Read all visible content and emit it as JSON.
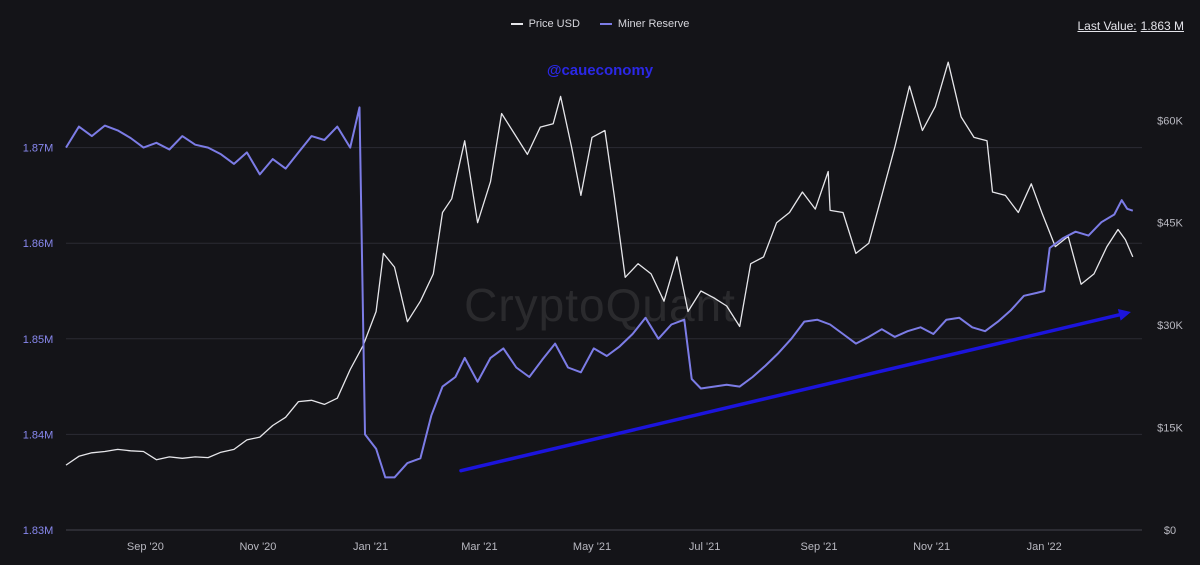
{
  "legend": {
    "price_label": "Price USD",
    "reserve_label": "Miner Reserve",
    "price_color": "#e6e6ea",
    "reserve_color": "#7c7ce6"
  },
  "last_value": {
    "label": "Last Value:",
    "value": "1.863 M"
  },
  "handle": "@caueconomy",
  "watermark": "CryptoQuant",
  "chart_data": {
    "type": "line",
    "title": "",
    "x_axis": {
      "ticks": [
        "Sep '20",
        "Nov '20",
        "Jan '21",
        "Mar '21",
        "May '21",
        "Jul '21",
        "Sep '21",
        "Nov '21",
        "Jan '22"
      ]
    },
    "y_left": {
      "label": "",
      "ylim": [
        1.83,
        1.88
      ],
      "ticks": [
        "1.83M",
        "1.84M",
        "1.85M",
        "1.86M",
        "1.87M"
      ]
    },
    "y_right": {
      "label": "",
      "ylim": [
        0,
        70000
      ],
      "ticks": [
        "$0",
        "$15K",
        "$30K",
        "$45K",
        "$60K"
      ]
    },
    "grid": "horizontal",
    "legend_position": "top-center",
    "series": [
      {
        "name": "Price USD",
        "axis": "right",
        "color": "#e6e6ea",
        "points": [
          [
            "2020-07-20",
            9500
          ],
          [
            "2020-07-27",
            10800
          ],
          [
            "2020-08-03",
            11300
          ],
          [
            "2020-08-10",
            11500
          ],
          [
            "2020-08-17",
            11800
          ],
          [
            "2020-08-24",
            11600
          ],
          [
            "2020-08-31",
            11500
          ],
          [
            "2020-09-07",
            10300
          ],
          [
            "2020-09-14",
            10700
          ],
          [
            "2020-09-21",
            10500
          ],
          [
            "2020-09-28",
            10700
          ],
          [
            "2020-10-05",
            10600
          ],
          [
            "2020-10-12",
            11400
          ],
          [
            "2020-10-19",
            11800
          ],
          [
            "2020-10-26",
            13200
          ],
          [
            "2020-11-02",
            13600
          ],
          [
            "2020-11-09",
            15300
          ],
          [
            "2020-11-16",
            16500
          ],
          [
            "2020-11-23",
            18800
          ],
          [
            "2020-11-30",
            19000
          ],
          [
            "2020-12-07",
            18400
          ],
          [
            "2020-12-14",
            19300
          ],
          [
            "2020-12-21",
            23500
          ],
          [
            "2020-12-28",
            27000
          ],
          [
            "2021-01-04",
            32000
          ],
          [
            "2021-01-08",
            40500
          ],
          [
            "2021-01-14",
            38500
          ],
          [
            "2021-01-21",
            30500
          ],
          [
            "2021-01-28",
            33500
          ],
          [
            "2021-02-04",
            37500
          ],
          [
            "2021-02-09",
            46500
          ],
          [
            "2021-02-14",
            48500
          ],
          [
            "2021-02-21",
            57000
          ],
          [
            "2021-02-28",
            45000
          ],
          [
            "2021-03-07",
            51000
          ],
          [
            "2021-03-13",
            61000
          ],
          [
            "2021-03-20",
            58000
          ],
          [
            "2021-03-27",
            55000
          ],
          [
            "2021-04-03",
            59000
          ],
          [
            "2021-04-10",
            59500
          ],
          [
            "2021-04-14",
            63500
          ],
          [
            "2021-04-20",
            56000
          ],
          [
            "2021-04-25",
            49000
          ],
          [
            "2021-05-01",
            57500
          ],
          [
            "2021-05-08",
            58500
          ],
          [
            "2021-05-13",
            49000
          ],
          [
            "2021-05-19",
            37000
          ],
          [
            "2021-05-26",
            39000
          ],
          [
            "2021-06-02",
            37500
          ],
          [
            "2021-06-09",
            33500
          ],
          [
            "2021-06-16",
            40000
          ],
          [
            "2021-06-22",
            32000
          ],
          [
            "2021-06-29",
            35000
          ],
          [
            "2021-07-06",
            34000
          ],
          [
            "2021-07-13",
            32800
          ],
          [
            "2021-07-20",
            29800
          ],
          [
            "2021-07-26",
            39000
          ],
          [
            "2021-08-02",
            40000
          ],
          [
            "2021-08-09",
            45000
          ],
          [
            "2021-08-16",
            46500
          ],
          [
            "2021-08-23",
            49500
          ],
          [
            "2021-08-30",
            47000
          ],
          [
            "2021-09-06",
            52500
          ],
          [
            "2021-09-07",
            46800
          ],
          [
            "2021-09-14",
            46500
          ],
          [
            "2021-09-21",
            40500
          ],
          [
            "2021-09-28",
            42000
          ],
          [
            "2021-10-05",
            49000
          ],
          [
            "2021-10-12",
            56000
          ],
          [
            "2021-10-20",
            65000
          ],
          [
            "2021-10-27",
            58500
          ],
          [
            "2021-11-03",
            62000
          ],
          [
            "2021-11-10",
            68500
          ],
          [
            "2021-11-17",
            60500
          ],
          [
            "2021-11-24",
            57500
          ],
          [
            "2021-12-01",
            57000
          ],
          [
            "2021-12-04",
            49500
          ],
          [
            "2021-12-11",
            49000
          ],
          [
            "2021-12-18",
            46500
          ],
          [
            "2021-12-25",
            50700
          ],
          [
            "2021-12-31",
            46300
          ],
          [
            "2022-01-07",
            41500
          ],
          [
            "2022-01-14",
            43000
          ],
          [
            "2022-01-21",
            36000
          ],
          [
            "2022-01-28",
            37500
          ],
          [
            "2022-02-04",
            41500
          ],
          [
            "2022-02-10",
            44000
          ],
          [
            "2022-02-14",
            42500
          ],
          [
            "2022-02-18",
            40000
          ]
        ]
      },
      {
        "name": "Miner Reserve",
        "axis": "left",
        "color": "#7c7ce6",
        "points": [
          [
            "2020-07-20",
            1.87
          ],
          [
            "2020-07-27",
            1.8722
          ],
          [
            "2020-08-03",
            1.8712
          ],
          [
            "2020-08-10",
            1.8723
          ],
          [
            "2020-08-17",
            1.8718
          ],
          [
            "2020-08-24",
            1.871
          ],
          [
            "2020-08-31",
            1.87
          ],
          [
            "2020-09-07",
            1.8705
          ],
          [
            "2020-09-14",
            1.8698
          ],
          [
            "2020-09-21",
            1.8712
          ],
          [
            "2020-09-28",
            1.8703
          ],
          [
            "2020-10-05",
            1.87
          ],
          [
            "2020-10-12",
            1.8693
          ],
          [
            "2020-10-19",
            1.8683
          ],
          [
            "2020-10-26",
            1.8695
          ],
          [
            "2020-11-02",
            1.8672
          ],
          [
            "2020-11-09",
            1.8688
          ],
          [
            "2020-11-16",
            1.8678
          ],
          [
            "2020-11-23",
            1.8695
          ],
          [
            "2020-11-30",
            1.8712
          ],
          [
            "2020-12-07",
            1.8708
          ],
          [
            "2020-12-14",
            1.8722
          ],
          [
            "2020-12-21",
            1.87
          ],
          [
            "2020-12-26",
            1.8742
          ],
          [
            "2020-12-29",
            1.84
          ],
          [
            "2021-01-04",
            1.8385
          ],
          [
            "2021-01-09",
            1.8355
          ],
          [
            "2021-01-14",
            1.8355
          ],
          [
            "2021-01-21",
            1.837
          ],
          [
            "2021-01-28",
            1.8375
          ],
          [
            "2021-02-03",
            1.842
          ],
          [
            "2021-02-09",
            1.845
          ],
          [
            "2021-02-16",
            1.846
          ],
          [
            "2021-02-21",
            1.848
          ],
          [
            "2021-02-28",
            1.8455
          ],
          [
            "2021-03-07",
            1.848
          ],
          [
            "2021-03-14",
            1.849
          ],
          [
            "2021-03-21",
            1.847
          ],
          [
            "2021-03-28",
            1.846
          ],
          [
            "2021-04-04",
            1.8478
          ],
          [
            "2021-04-11",
            1.8495
          ],
          [
            "2021-04-18",
            1.847
          ],
          [
            "2021-04-25",
            1.8465
          ],
          [
            "2021-05-02",
            1.849
          ],
          [
            "2021-05-09",
            1.8482
          ],
          [
            "2021-05-16",
            1.8492
          ],
          [
            "2021-05-23",
            1.8505
          ],
          [
            "2021-05-30",
            1.8522
          ],
          [
            "2021-06-06",
            1.85
          ],
          [
            "2021-06-13",
            1.8515
          ],
          [
            "2021-06-20",
            1.852
          ],
          [
            "2021-06-24",
            1.8458
          ],
          [
            "2021-06-29",
            1.8448
          ],
          [
            "2021-07-06",
            1.845
          ],
          [
            "2021-07-13",
            1.8452
          ],
          [
            "2021-07-20",
            1.845
          ],
          [
            "2021-07-27",
            1.846
          ],
          [
            "2021-08-03",
            1.8472
          ],
          [
            "2021-08-10",
            1.8485
          ],
          [
            "2021-08-17",
            1.85
          ],
          [
            "2021-08-24",
            1.8518
          ],
          [
            "2021-08-31",
            1.852
          ],
          [
            "2021-09-07",
            1.8515
          ],
          [
            "2021-09-14",
            1.8505
          ],
          [
            "2021-09-21",
            1.8495
          ],
          [
            "2021-09-28",
            1.8502
          ],
          [
            "2021-10-05",
            1.851
          ],
          [
            "2021-10-12",
            1.8502
          ],
          [
            "2021-10-19",
            1.8508
          ],
          [
            "2021-10-26",
            1.8512
          ],
          [
            "2021-11-02",
            1.8505
          ],
          [
            "2021-11-09",
            1.852
          ],
          [
            "2021-11-16",
            1.8522
          ],
          [
            "2021-11-23",
            1.8512
          ],
          [
            "2021-11-30",
            1.8508
          ],
          [
            "2021-12-07",
            1.8518
          ],
          [
            "2021-12-14",
            1.853
          ],
          [
            "2021-12-21",
            1.8545
          ],
          [
            "2021-12-28",
            1.8548
          ],
          [
            "2022-01-01",
            1.855
          ],
          [
            "2022-01-04",
            1.8595
          ],
          [
            "2022-01-11",
            1.8605
          ],
          [
            "2022-01-18",
            1.8612
          ],
          [
            "2022-01-25",
            1.8608
          ],
          [
            "2022-02-01",
            1.8622
          ],
          [
            "2022-02-08",
            1.863
          ],
          [
            "2022-02-12",
            1.8645
          ],
          [
            "2022-02-15",
            1.8636
          ],
          [
            "2022-02-18",
            1.8634
          ]
        ]
      }
    ],
    "annotations": [
      {
        "type": "arrow",
        "color": "#1c14dd",
        "from": [
          "2021-02-19",
          1.8362
        ],
        "to": [
          "2022-02-17",
          1.8528
        ]
      }
    ]
  }
}
